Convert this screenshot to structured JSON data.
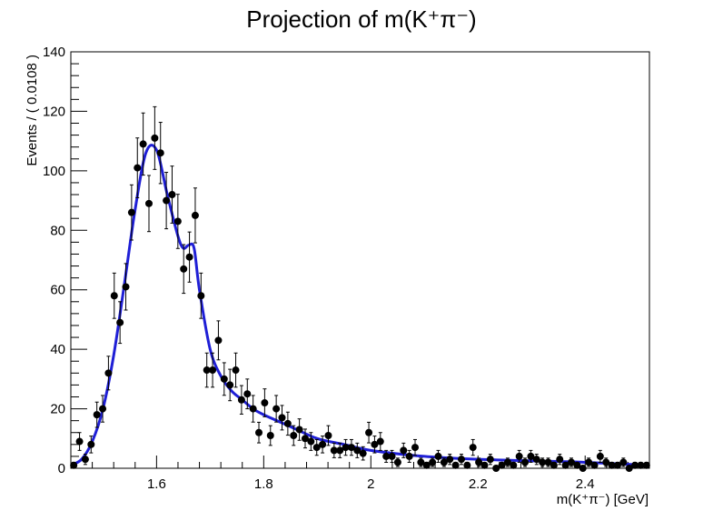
{
  "chart_data": {
    "type": "scatter",
    "title": "Projection of m(K⁺π⁻)",
    "xlabel": "m(K⁺π⁻) [GeV]",
    "ylabel": "Events / ( 0.0108 )",
    "xlim": [
      1.44,
      2.52
    ],
    "ylim": [
      0,
      140
    ],
    "xticks": [
      1.6,
      1.8,
      2,
      2.2,
      2.4
    ],
    "xtick_labels": [
      "1.6",
      "1.8",
      "2",
      "2.2",
      "2.4"
    ],
    "yticks": [
      0,
      20,
      40,
      60,
      80,
      100,
      120,
      140
    ],
    "ytick_labels": [
      "0",
      "20",
      "40",
      "60",
      "80",
      "100",
      "120",
      "140"
    ],
    "grid": false,
    "legend": "none",
    "colors": {
      "data": "#000000",
      "fit": "#1f1fd6"
    },
    "series": [
      {
        "kind": "points_with_errors",
        "x": [
          1.4454,
          1.4562,
          1.467,
          1.4778,
          1.4886,
          1.4994,
          1.5102,
          1.521,
          1.5318,
          1.5426,
          1.5534,
          1.5642,
          1.575,
          1.5858,
          1.5966,
          1.6074,
          1.6182,
          1.629,
          1.6398,
          1.6506,
          1.6614,
          1.6722,
          1.683,
          1.6938,
          1.7046,
          1.7154,
          1.7262,
          1.737,
          1.7478,
          1.7586,
          1.7694,
          1.7802,
          1.791,
          1.8018,
          1.8126,
          1.8234,
          1.8342,
          1.845,
          1.8558,
          1.8666,
          1.8774,
          1.8882,
          1.899,
          1.9098,
          1.9206,
          1.9314,
          1.9422,
          1.953,
          1.9638,
          1.9746,
          1.9854,
          1.9962,
          2.007,
          2.0178,
          2.0286,
          2.0394,
          2.0502,
          2.061,
          2.0718,
          2.0826,
          2.0934,
          2.1042,
          2.115,
          2.1258,
          2.1366,
          2.1474,
          2.1582,
          2.169,
          2.1798,
          2.1906,
          2.2014,
          2.2122,
          2.223,
          2.2338,
          2.2446,
          2.2554,
          2.2662,
          2.277,
          2.2878,
          2.2986,
          2.3094,
          2.3202,
          2.331,
          2.3418,
          2.3526,
          2.3634,
          2.3742,
          2.385,
          2.3958,
          2.4066,
          2.4174,
          2.4282,
          2.439,
          2.4498,
          2.4606,
          2.4714,
          2.4822,
          2.493,
          2.5038,
          2.5146
        ],
        "y": [
          1,
          9,
          3,
          8,
          18,
          20,
          32,
          58,
          49,
          61,
          86,
          101,
          109,
          89,
          111,
          106,
          90,
          92,
          83,
          67,
          71,
          85,
          58,
          33,
          33,
          43,
          30,
          28,
          33,
          23,
          25,
          20,
          12,
          22,
          11,
          20,
          17,
          15,
          11,
          13,
          10,
          9,
          7,
          8,
          11,
          6,
          6,
          7,
          7,
          6,
          5,
          12,
          8,
          9,
          4,
          4,
          2,
          6,
          4,
          7,
          2,
          1,
          2,
          4,
          2,
          3,
          1,
          3,
          1,
          7,
          2,
          1,
          3,
          0,
          1,
          2,
          1,
          4,
          2,
          4,
          3,
          2,
          2,
          1,
          3,
          1,
          2,
          1,
          0,
          2,
          1,
          4,
          2,
          1,
          1,
          2,
          0,
          1,
          1,
          1
        ]
      },
      {
        "kind": "fit_curve",
        "x": [
          1.44,
          1.46,
          1.48,
          1.5,
          1.52,
          1.54,
          1.56,
          1.58,
          1.6,
          1.62,
          1.64,
          1.65,
          1.66,
          1.67,
          1.68,
          1.7,
          1.72,
          1.74,
          1.76,
          1.78,
          1.8,
          1.85,
          1.9,
          1.95,
          2.0,
          2.1,
          2.2,
          2.3,
          2.4,
          2.52
        ],
        "y": [
          1,
          3,
          9,
          20,
          38,
          62,
          87,
          106,
          107,
          92,
          78,
          74,
          75,
          74,
          60,
          40,
          31,
          26,
          23,
          20,
          18,
          14,
          10,
          8,
          6,
          4,
          3,
          2.5,
          2,
          1
        ]
      }
    ]
  }
}
